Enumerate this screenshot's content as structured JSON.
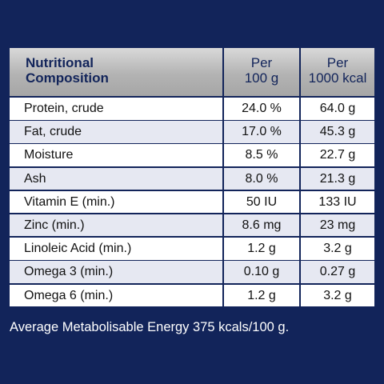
{
  "header": {
    "name_line1": "Nutritional",
    "name_line2": "Composition",
    "col1_line1": "Per",
    "col1_line2": "100 g",
    "col2_line1": "Per",
    "col2_line2": "1000 kcal"
  },
  "rows": [
    {
      "name": "Protein, crude",
      "per100g": "24.0 %",
      "per1000kcal": "64.0 g"
    },
    {
      "name": "Fat, crude",
      "per100g": "17.0 %",
      "per1000kcal": "45.3 g"
    },
    {
      "name": "Moisture",
      "per100g": "8.5 %",
      "per1000kcal": "22.7 g"
    },
    {
      "name": "Ash",
      "per100g": "8.0 %",
      "per1000kcal": "21.3 g"
    },
    {
      "name": "Vitamin E (min.)",
      "per100g": "50 IU",
      "per1000kcal": "133 IU"
    },
    {
      "name": "Zinc (min.)",
      "per100g": "8.6 mg",
      "per1000kcal": "23 mg"
    },
    {
      "name": "Linoleic Acid (min.)",
      "per100g": "1.2 g",
      "per1000kcal": "3.2 g"
    },
    {
      "name": "Omega 3 (min.)",
      "per100g": "0.10 g",
      "per1000kcal": "0.27 g"
    },
    {
      "name": "Omega 6 (min.)",
      "per100g": "1.2 g",
      "per1000kcal": "3.2 g"
    }
  ],
  "footnote": "Average Metabolisable Energy 375 kcals/100 g."
}
